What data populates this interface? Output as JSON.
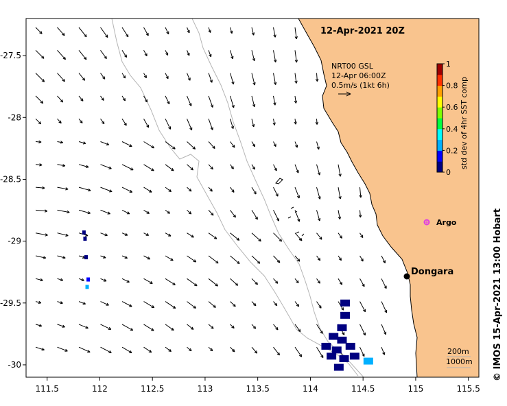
{
  "map": {
    "title": "12-Apr-2021 20Z",
    "credit": "©  IMOS 15-Apr-2021 13:00 Hobart",
    "lon_range": [
      111.3,
      115.6
    ],
    "lat_range": [
      -30.1,
      -27.2
    ],
    "lon_ticks": [
      "111.5",
      "112",
      "112.5",
      "113",
      "113.5",
      "114",
      "114.5",
      "115",
      "115.5"
    ],
    "lat_ticks": [
      "-27.5",
      "-28",
      "-28.5",
      "-29",
      "-29.5",
      "-30"
    ],
    "colors": {
      "land": "#f9c48e",
      "coast": "#000000",
      "isobath": "#b4b4b4",
      "argo": "#e040e0"
    }
  },
  "current_legend": {
    "line1": "NRT00 GSL",
    "line2": "12-Apr 06:00Z",
    "line3": "0.5m/s (1kt 6h)",
    "scale_mps": 0.5
  },
  "colorbar": {
    "label": "std dev of 4hr SST comp",
    "ticks": [
      "0",
      "0.2",
      "0.4",
      "0.6",
      "0.8",
      "1"
    ],
    "colors": [
      "#000080",
      "#0000ff",
      "#00b0ff",
      "#00ffff",
      "#00ff40",
      "#80ff00",
      "#ffff00",
      "#ffa000",
      "#ff3000",
      "#a00000"
    ]
  },
  "places": {
    "dongara": {
      "name": "Dongara",
      "lon": 114.93,
      "lat": -29.25
    },
    "argo": {
      "name": "Argo",
      "lon": 115.1,
      "lat": -28.8
    }
  },
  "isobath_legend": {
    "shallow": "200m",
    "deep": "1000m"
  },
  "sst_std_patches": [
    {
      "lon": 111.85,
      "lat": -28.93,
      "value": 0.05
    },
    {
      "lon": 111.86,
      "lat": -28.98,
      "value": 0.05
    },
    {
      "lon": 111.87,
      "lat": -29.13,
      "value": 0.05
    },
    {
      "lon": 111.89,
      "lat": -29.31,
      "value": 0.15
    },
    {
      "lon": 111.88,
      "lat": -29.37,
      "value": 0.2
    },
    {
      "lon": 114.33,
      "lat": -29.5,
      "value": 0.05
    },
    {
      "lon": 114.33,
      "lat": -29.6,
      "value": 0.05
    },
    {
      "lon": 114.3,
      "lat": -29.7,
      "value": 0.05
    },
    {
      "lon": 114.22,
      "lat": -29.77,
      "value": 0.05
    },
    {
      "lon": 114.3,
      "lat": -29.8,
      "value": 0.05
    },
    {
      "lon": 114.15,
      "lat": -29.85,
      "value": 0.05
    },
    {
      "lon": 114.25,
      "lat": -29.88,
      "value": 0.05
    },
    {
      "lon": 114.38,
      "lat": -29.85,
      "value": 0.05
    },
    {
      "lon": 114.2,
      "lat": -29.93,
      "value": 0.05
    },
    {
      "lon": 114.32,
      "lat": -29.95,
      "value": 0.05
    },
    {
      "lon": 114.42,
      "lat": -29.93,
      "value": 0.05
    },
    {
      "lon": 114.27,
      "lat": -30.02,
      "value": 0.05
    },
    {
      "lon": 114.55,
      "lat": -29.97,
      "value": 0.25
    }
  ]
}
